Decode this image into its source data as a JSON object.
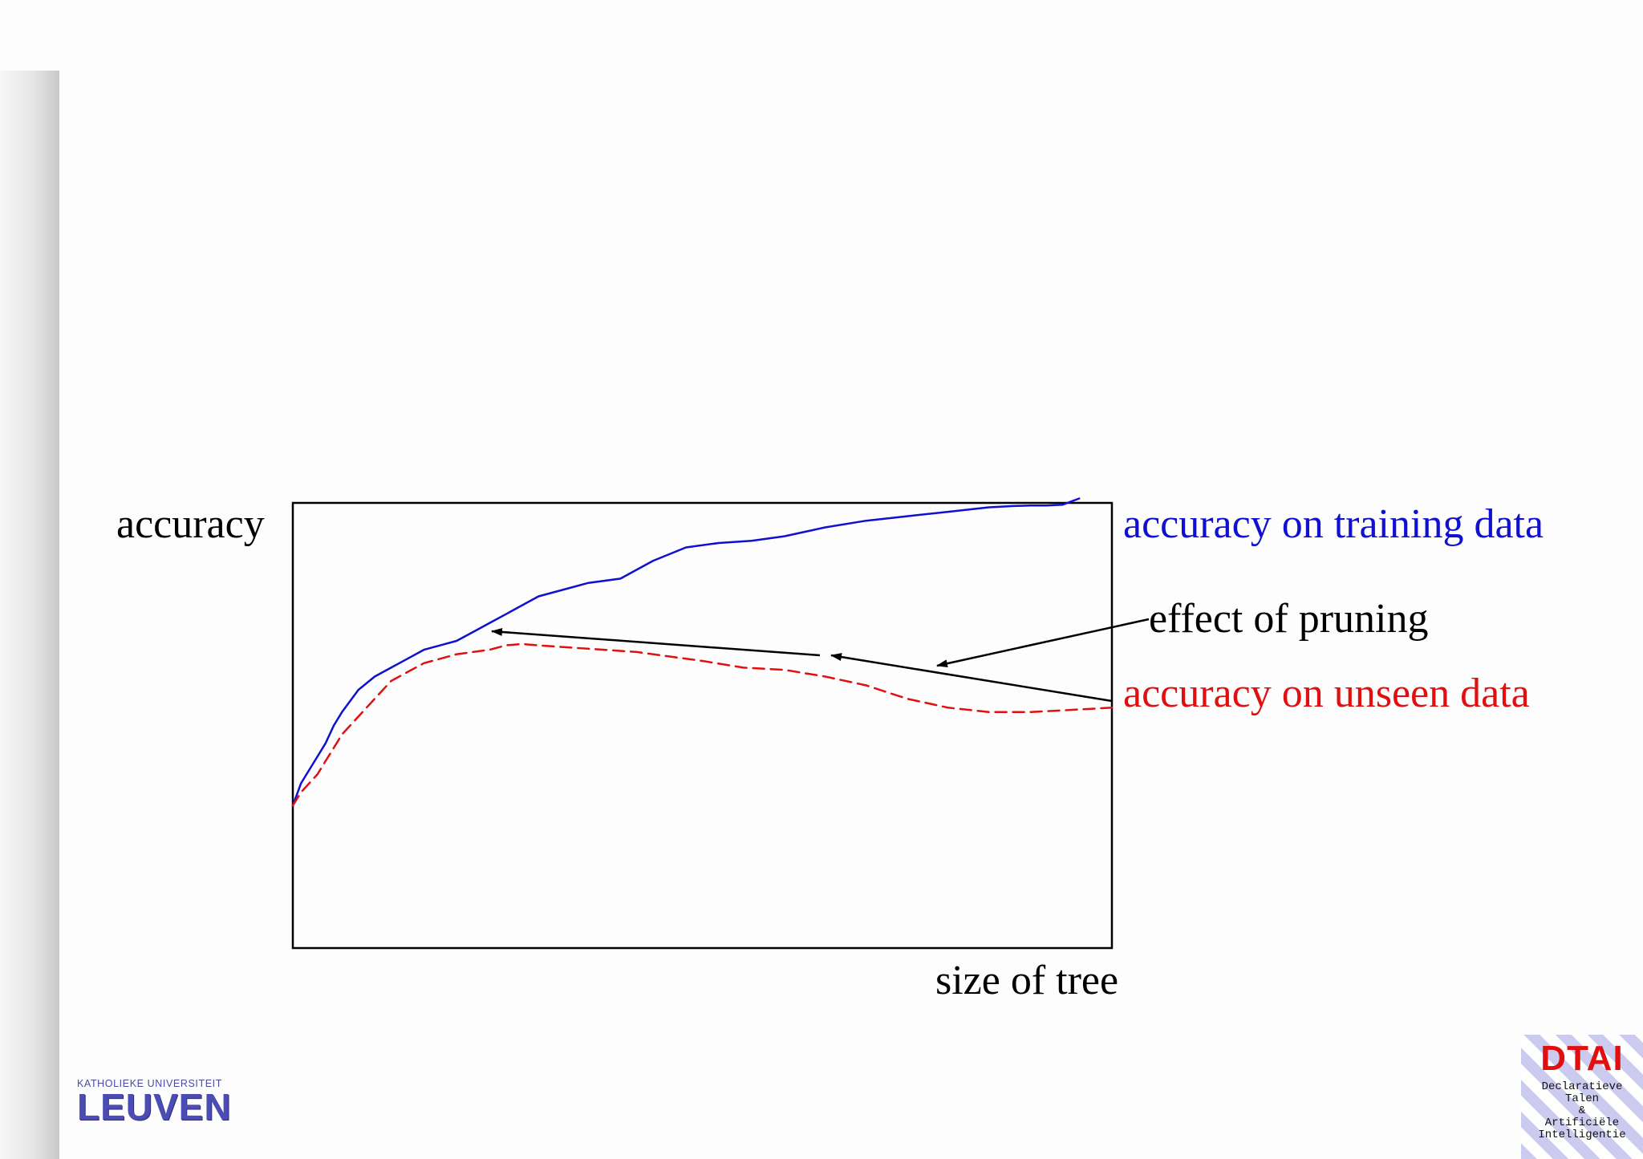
{
  "chart_data": {
    "type": "line",
    "xlabel": "size of tree",
    "ylabel": "accuracy",
    "x_ticks": "none",
    "y_ticks": "none",
    "xlim": [
      0,
      100
    ],
    "ylim": [
      0,
      100
    ],
    "series": [
      {
        "name": "accuracy on training data",
        "color": "#1010d0",
        "style": "solid",
        "x": [
          0,
          1,
          2,
          3,
          4,
          5,
          6,
          8,
          10,
          12,
          14,
          16,
          18,
          20,
          22,
          24,
          26,
          28,
          30,
          32,
          34,
          36,
          40,
          44,
          48,
          52,
          56,
          60,
          65,
          70,
          75,
          80,
          85,
          88,
          90,
          92,
          94,
          96
        ],
        "values": [
          32,
          37,
          40,
          43,
          46,
          50,
          53,
          58,
          61,
          63,
          65,
          67,
          68,
          69,
          71,
          73,
          75,
          77,
          79,
          80,
          81,
          82,
          83,
          87,
          90,
          91,
          91.5,
          92.5,
          94.5,
          96,
          97,
          98,
          99,
          99.3,
          99.4,
          99.4,
          99.6,
          101
        ]
      },
      {
        "name": "accuracy on unseen data",
        "color": "#e01010",
        "style": "dashed",
        "x": [
          0,
          1,
          2,
          3,
          4,
          5,
          6,
          8,
          10,
          12,
          14,
          16,
          18,
          20,
          22,
          24,
          26,
          28,
          30,
          34,
          38,
          42,
          46,
          50,
          55,
          60,
          65,
          70,
          75,
          80,
          85,
          90,
          95,
          100
        ],
        "values": [
          32,
          35,
          37,
          39,
          42,
          45,
          48,
          52,
          56,
          60,
          62,
          64,
          65,
          66,
          66.5,
          67,
          68,
          68.3,
          68,
          67.5,
          67,
          66.5,
          65.5,
          64.5,
          63,
          62.5,
          61,
          59,
          56,
          54,
          53,
          53,
          53.5,
          54
        ]
      }
    ],
    "annotations": [
      {
        "text": "accuracy on training data",
        "color": "#1010d0"
      },
      {
        "text": "accuracy on unseen data",
        "color": "#e01010"
      },
      {
        "text": "effect of pruning",
        "color": "#000000"
      }
    ],
    "grid": false,
    "legend": "right (inline labels)"
  },
  "logos": {
    "left": {
      "top_text": "KATHOLIEKE UNIVERSITEIT",
      "main_text": "LEUVEN"
    },
    "right": {
      "title": "DTAI",
      "lines": [
        "Declaratieve",
        "Talen",
        "&",
        "Artificiële",
        "Intelligentie"
      ]
    }
  }
}
